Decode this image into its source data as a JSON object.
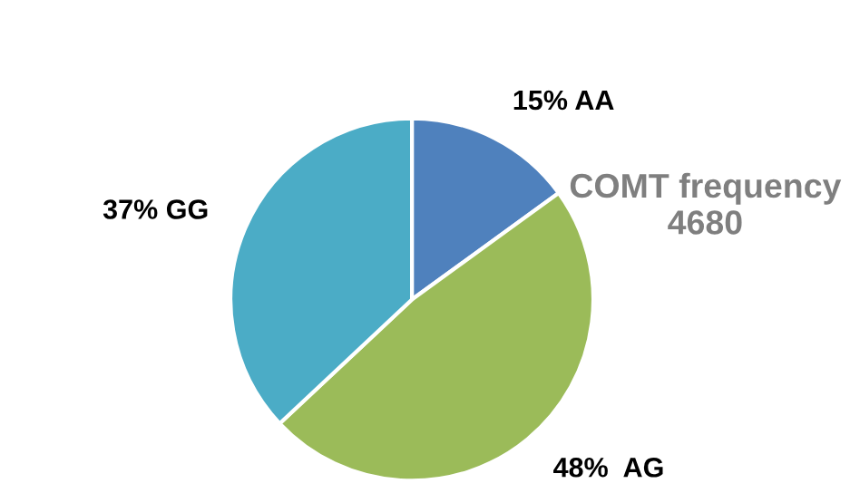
{
  "chart_data": {
    "type": "pie",
    "title": "COMT frequency\n4680",
    "categories": [
      "15% AA",
      "48%  AG",
      "37% GG"
    ],
    "values": [
      15,
      48,
      37
    ],
    "colors": [
      "#4f81bd",
      "#9bbb59",
      "#4bacc6"
    ],
    "legend": false
  }
}
